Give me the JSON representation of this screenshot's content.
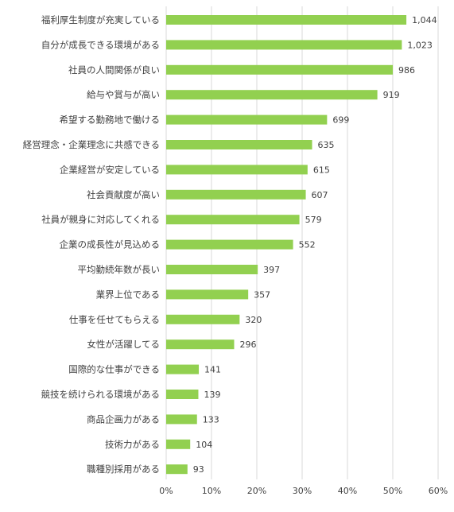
{
  "chart_data": {
    "type": "bar",
    "orientation": "horizontal",
    "categories": [
      "福利厚生制度が充実している",
      "自分が成長できる環境がある",
      "社員の人間関係が良い",
      "給与や賞与が高い",
      "希望する勤務地で働ける",
      "経営理念・企業理念に共感できる",
      "企業経営が安定している",
      "社会貢献度が高い",
      "社員が親身に対応してくれる",
      "企業の成長性が見込める",
      "平均勤続年数が長い",
      "業界上位である",
      "仕事を任せてもらえる",
      "女性が活躍してる",
      "国際的な仕事ができる",
      "競技を続けられる環境がある",
      "商品企画力がある",
      "技術力がある",
      "職種別採用がある"
    ],
    "values": [
      1044,
      1023,
      986,
      919,
      699,
      635,
      615,
      607,
      579,
      552,
      397,
      357,
      320,
      296,
      141,
      139,
      133,
      104,
      93
    ],
    "value_labels": [
      "1,044",
      "1,023",
      "986",
      "919",
      "699",
      "635",
      "615",
      "607",
      "579",
      "552",
      "397",
      "357",
      "320",
      "296",
      "141",
      "139",
      "133",
      "104",
      "93"
    ],
    "percent_values": [
      0.53,
      0.52,
      0.5,
      0.466,
      0.355,
      0.322,
      0.312,
      0.308,
      0.294,
      0.28,
      0.202,
      0.181,
      0.162,
      0.15,
      0.072,
      0.071,
      0.068,
      0.053,
      0.047
    ],
    "x_ticks": [
      "0%",
      "10%",
      "20%",
      "30%",
      "40%",
      "50%",
      "60%"
    ],
    "xlim": [
      0,
      0.6
    ],
    "grid": true,
    "colors": {
      "bar": "#92D050",
      "grid": "#D9D9D9",
      "text": "#404040"
    }
  }
}
